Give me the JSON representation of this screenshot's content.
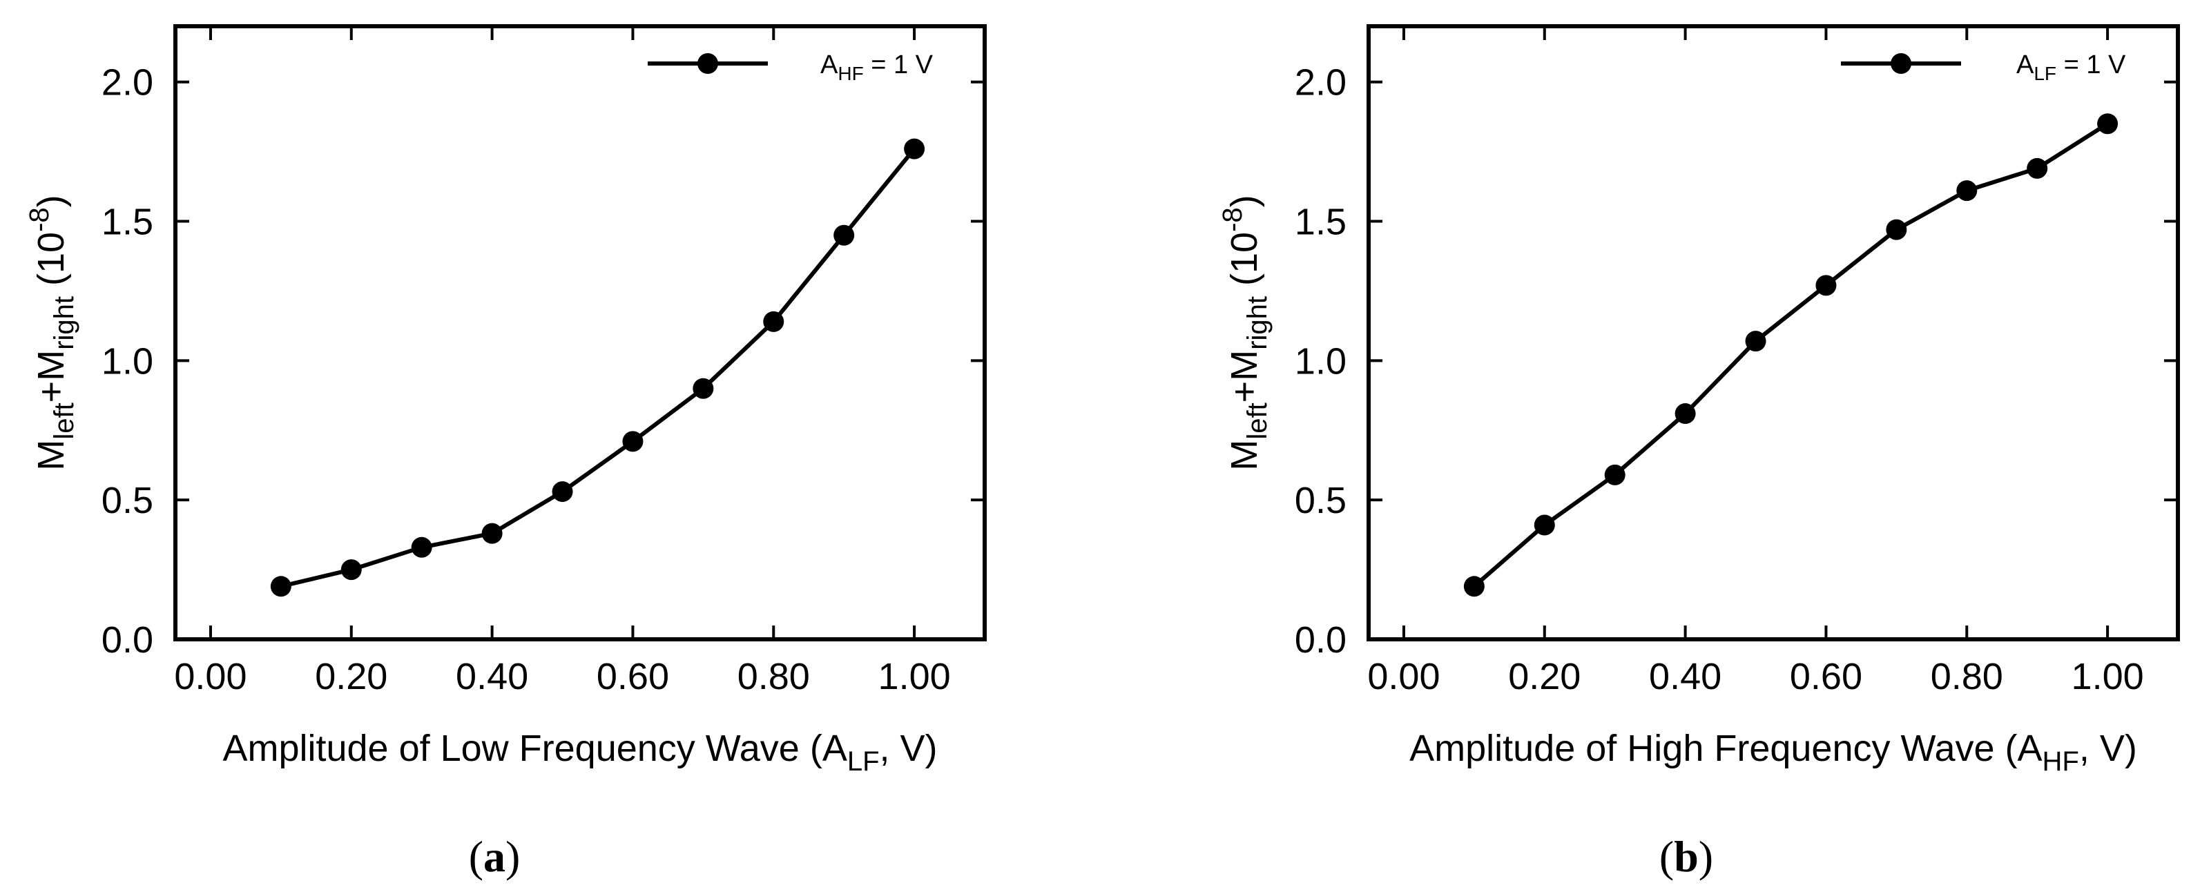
{
  "chart_data": [
    {
      "type": "line",
      "panel_label": "a",
      "title": "",
      "xlabel": {
        "prefix": "Amplitude of Low Frequency Wave (A",
        "sub": "LF",
        "suffix": ", V)"
      },
      "ylabel": {
        "m1": "M",
        "sub1": "left",
        "mid": "+M",
        "sub2": "right",
        "tail": " (10",
        "sup": "-8",
        "end": ")"
      },
      "xlim": [
        -0.05,
        1.1
      ],
      "ylim": [
        0.0,
        2.2
      ],
      "xticks": [
        "0.00",
        "0.20",
        "0.40",
        "0.60",
        "0.80",
        "1.00"
      ],
      "yticks": [
        "0.0",
        "0.5",
        "1.0",
        "1.5",
        "2.0"
      ],
      "legend_position": "top-right",
      "series": [
        {
          "name": {
            "main": "A",
            "sub": "HF",
            "rest": " = 1 V"
          },
          "color": "#000000",
          "x": [
            0.1,
            0.2,
            0.3,
            0.4,
            0.5,
            0.6,
            0.7,
            0.8,
            0.9,
            1.0
          ],
          "y": [
            0.19,
            0.25,
            0.33,
            0.38,
            0.53,
            0.71,
            0.9,
            1.14,
            1.45,
            1.76
          ]
        }
      ]
    },
    {
      "type": "line",
      "panel_label": "b",
      "title": "",
      "xlabel": {
        "prefix": "Amplitude of High Frequency Wave (A",
        "sub": "HF",
        "suffix": ", V)"
      },
      "ylabel": {
        "m1": "M",
        "sub1": "left",
        "mid": "+M",
        "sub2": "right",
        "tail": " (10",
        "sup": "-8",
        "end": ")"
      },
      "xlim": [
        -0.05,
        1.1
      ],
      "ylim": [
        0.0,
        2.2
      ],
      "xticks": [
        "0.00",
        "0.20",
        "0.40",
        "0.60",
        "0.80",
        "1.00"
      ],
      "yticks": [
        "0.0",
        "0.5",
        "1.0",
        "1.5",
        "2.0"
      ],
      "legend_position": "top-right",
      "series": [
        {
          "name": {
            "main": "A",
            "sub": "LF",
            "rest": " = 1 V"
          },
          "color": "#000000",
          "x": [
            0.1,
            0.2,
            0.3,
            0.4,
            0.5,
            0.6,
            0.7,
            0.8,
            0.9,
            1.0
          ],
          "y": [
            0.19,
            0.41,
            0.59,
            0.81,
            1.07,
            1.27,
            1.47,
            1.61,
            1.69,
            1.85
          ]
        }
      ]
    }
  ]
}
